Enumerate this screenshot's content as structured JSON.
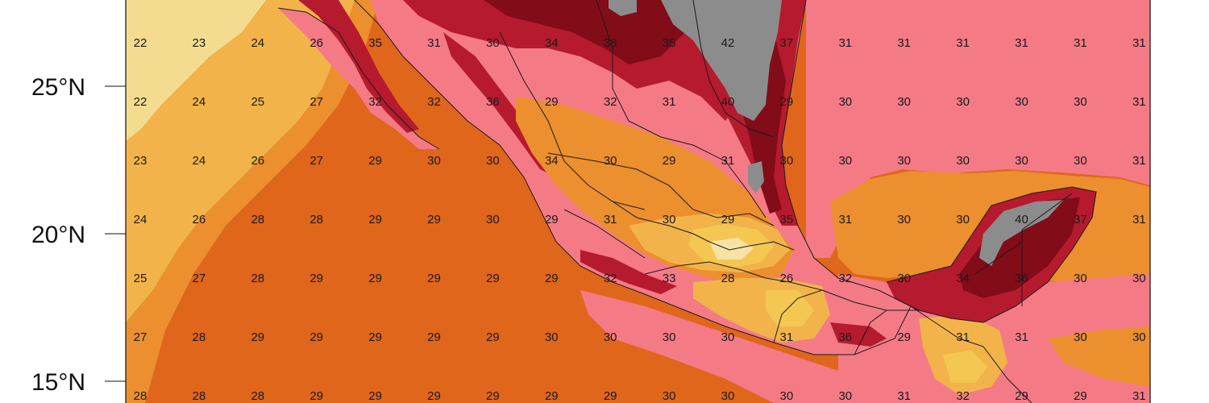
{
  "map": {
    "lat_labels": [
      {
        "label": "25°N",
        "lat": 25
      },
      {
        "label": "20°N",
        "lat": 20
      },
      {
        "label": "15°N",
        "lat": 15
      }
    ],
    "grid_values": [
      [
        22,
        23,
        24,
        26,
        35,
        31,
        30,
        34,
        38,
        35,
        42,
        37,
        31,
        31,
        31,
        31,
        31,
        31
      ],
      [
        22,
        24,
        25,
        27,
        32,
        32,
        36,
        29,
        32,
        31,
        40,
        29,
        30,
        30,
        30,
        30,
        30,
        31
      ],
      [
        23,
        24,
        26,
        27,
        29,
        30,
        30,
        34,
        30,
        29,
        31,
        30,
        30,
        30,
        30,
        30,
        30,
        31
      ],
      [
        24,
        26,
        28,
        28,
        29,
        29,
        30,
        29,
        31,
        30,
        29,
        35,
        31,
        30,
        30,
        40,
        37,
        31
      ],
      [
        25,
        27,
        28,
        29,
        29,
        29,
        29,
        29,
        32,
        33,
        28,
        26,
        32,
        30,
        34,
        36,
        30,
        30
      ],
      [
        27,
        28,
        29,
        29,
        29,
        29,
        29,
        30,
        30,
        30,
        30,
        31,
        36,
        29,
        31,
        31,
        30,
        30
      ],
      [
        28,
        28,
        28,
        29,
        29,
        29,
        29,
        29,
        29,
        30,
        30,
        30,
        30,
        31,
        32,
        29,
        29,
        31
      ]
    ],
    "colors": {
      "c22": "#f3dc8f",
      "c24": "#f2b44a",
      "c28": "#e0661c",
      "c29": "#ec8f2e",
      "c30": "#f47b86",
      "c32": "#e94a5c",
      "c34": "#b61a2e",
      "c36": "#820c18",
      "c40": "#8c8c8c",
      "hot_land_yellow": "#f4c753",
      "hot_land_cream": "#f8e3a4"
    }
  }
}
